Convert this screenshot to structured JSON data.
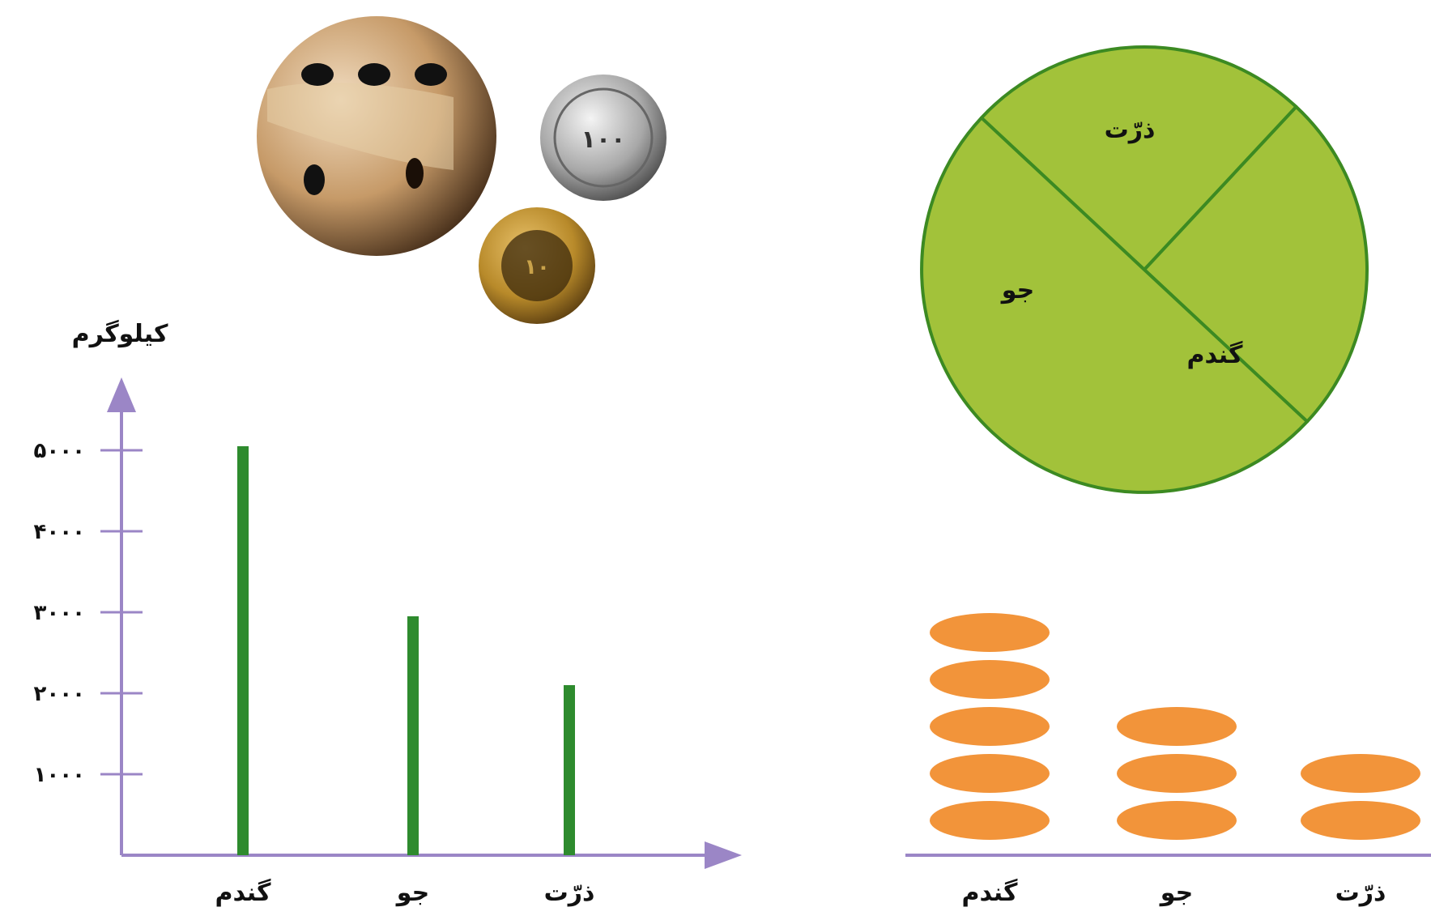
{
  "colors": {
    "axis": "#9b86c6",
    "bar": "#2e8b2e",
    "pie_fill": "#a2c23a",
    "pie_stroke": "#3c8a22",
    "disk": "#f2943a"
  },
  "decor": {
    "coin_large_label": "۱۰۰",
    "coin_small_label": "۱۰",
    "icons": [
      "dice-icon",
      "coin-icon"
    ]
  },
  "chart_data": [
    {
      "type": "bar",
      "ylabel": "کیلوگرم",
      "xlabel": "",
      "categories": [
        "گندم",
        "جو",
        "ذرّت"
      ],
      "values": [
        5050,
        2950,
        2100
      ],
      "y_ticks": [
        1000,
        2000,
        3000,
        4000,
        5000
      ],
      "y_tick_labels": [
        "۱۰۰۰",
        "۲۰۰۰",
        "۳۰۰۰",
        "۴۰۰۰",
        "۵۰۰۰"
      ],
      "ylim": [
        0,
        5500
      ],
      "grid": false
    },
    {
      "type": "pie",
      "slices": [
        {
          "label": "ذرّت",
          "value": 25
        },
        {
          "label": "جو",
          "value": 25
        },
        {
          "label": "گندم",
          "value": 50
        }
      ]
    },
    {
      "type": "bar",
      "style": "pictograph",
      "categories": [
        "گندم",
        "جو",
        "ذرّت"
      ],
      "values": [
        5,
        3,
        2
      ],
      "unit": "disk"
    }
  ]
}
